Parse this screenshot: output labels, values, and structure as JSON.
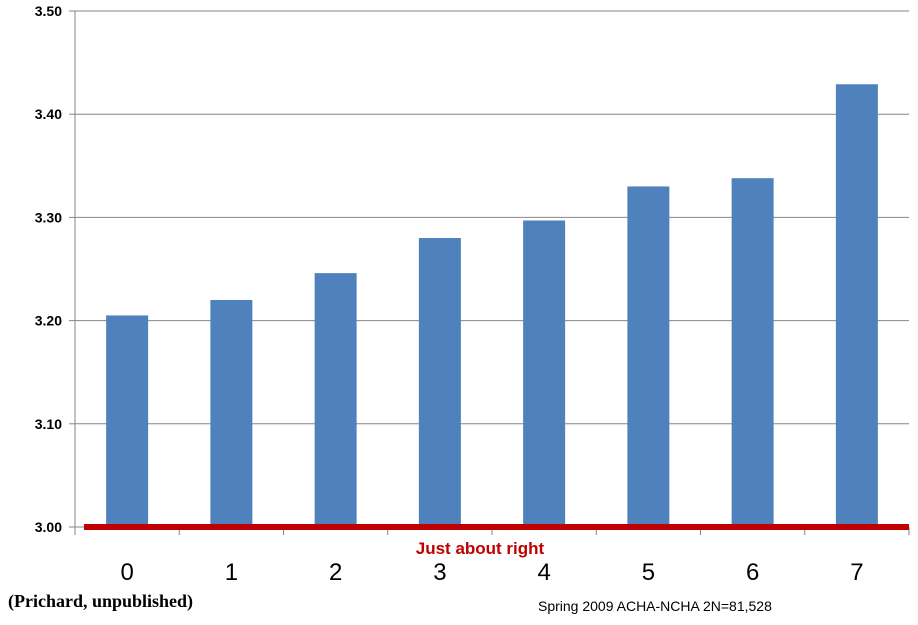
{
  "chart_data": {
    "type": "bar",
    "categories": [
      "0",
      "1",
      "2",
      "3",
      "4",
      "5",
      "6",
      "7"
    ],
    "values": [
      3.205,
      3.22,
      3.246,
      3.28,
      3.297,
      3.33,
      3.338,
      3.429
    ],
    "ylim": [
      3.0,
      3.5
    ],
    "yticks": [
      "3.00",
      "3.10",
      "3.20",
      "3.30",
      "3.40",
      "3.50"
    ],
    "title": "",
    "xlabel": "",
    "ylabel": "",
    "grid": true,
    "legend": "none",
    "bar_color": "#4f81bd",
    "reference_line": {
      "value": 3.0,
      "label": "Just about right",
      "color": "#c00000"
    }
  },
  "credits": {
    "left": "(Prichard, unpublished)",
    "right": "Spring 2009 ACHA-NCHA 2N=81,528"
  }
}
